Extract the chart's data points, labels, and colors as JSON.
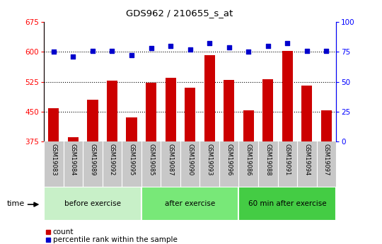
{
  "title": "GDS962 / 210655_s_at",
  "samples": [
    "GSM19083",
    "GSM19084",
    "GSM19089",
    "GSM19092",
    "GSM19095",
    "GSM19085",
    "GSM19087",
    "GSM19090",
    "GSM19093",
    "GSM19096",
    "GSM19086",
    "GSM19088",
    "GSM19091",
    "GSM19094",
    "GSM19097"
  ],
  "counts": [
    458,
    385,
    480,
    527,
    435,
    523,
    535,
    510,
    592,
    530,
    453,
    532,
    603,
    515,
    453
  ],
  "percentiles": [
    75,
    71,
    76,
    76,
    72,
    78,
    80,
    77,
    82,
    79,
    75,
    80,
    82,
    76,
    76
  ],
  "groups": [
    {
      "label": "before exercise",
      "start": 0,
      "end": 5
    },
    {
      "label": "after exercise",
      "start": 5,
      "end": 10
    },
    {
      "label": "60 min after exercise",
      "start": 10,
      "end": 15
    }
  ],
  "group_colors": [
    "#c8f0c8",
    "#78e878",
    "#44cc44"
  ],
  "ylim_left": [
    375,
    675
  ],
  "ylim_right": [
    0,
    100
  ],
  "yticks_left": [
    375,
    450,
    525,
    600,
    675
  ],
  "yticks_right": [
    0,
    25,
    50,
    75,
    100
  ],
  "bar_color": "#cc0000",
  "dot_color": "#0000cc",
  "bg_color": "#c8c8c8",
  "plot_bg": "#ffffff",
  "legend_count_label": "count",
  "legend_pct_label": "percentile rank within the sample",
  "time_label": "time",
  "bar_bottom": 375,
  "grid_lines": [
    450,
    525,
    600
  ]
}
